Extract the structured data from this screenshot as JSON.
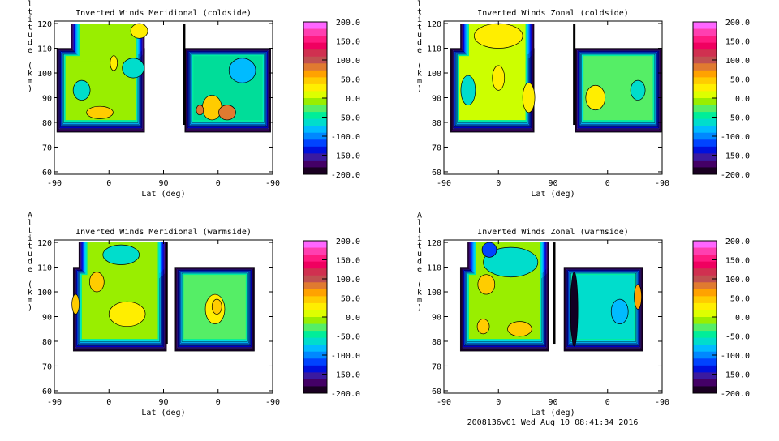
{
  "footer": "2008136v01 Wed Aug 10 08:41:34 2016",
  "colorbar": {
    "ticks": [
      "200.0",
      "150.0",
      "100.0",
      "50.0",
      "0.0",
      "-50.0",
      "-100.0",
      "-150.0",
      "-200.0"
    ],
    "range": [
      -200,
      200
    ],
    "colors": [
      "#ff66ff",
      "#ff3fb0",
      "#ff1a80",
      "#f00060",
      "#d03050",
      "#c05050",
      "#e07a30",
      "#ffa200",
      "#ffcc00",
      "#ffee00",
      "#ddff00",
      "#99ee00",
      "#55ee66",
      "#00ee99",
      "#00ddcc",
      "#00bbff",
      "#0088ff",
      "#0044ff",
      "#0010dd",
      "#3a1aa0",
      "#440066",
      "#1a0022"
    ]
  },
  "chart_data": [
    {
      "type": "heatmap",
      "title": "Inverted Winds Meridional (coldside)",
      "xlabel": "Lat (deg)",
      "ylabel": "Altitude (km)",
      "xticks": [
        "-90",
        "0",
        "90",
        "0",
        "-90"
      ],
      "yticks": [
        "60",
        "70",
        "80",
        "90",
        "100",
        "110",
        "120"
      ],
      "ylim": [
        59,
        121
      ],
      "colorbar_range": [
        -200,
        200
      ]
    },
    {
      "type": "heatmap",
      "title": "Inverted Winds Zonal (coldside)",
      "xlabel": "Lat (deg)",
      "ylabel": "Altitude (km)",
      "xticks": [
        "-90",
        "0",
        "90",
        "0",
        "-90"
      ],
      "yticks": [
        "60",
        "70",
        "80",
        "90",
        "100",
        "110",
        "120"
      ],
      "ylim": [
        59,
        121
      ],
      "colorbar_range": [
        -200,
        200
      ]
    },
    {
      "type": "heatmap",
      "title": "Inverted Winds Meridional (warmside)",
      "xlabel": "Lat (deg)",
      "ylabel": "Altitude (km)",
      "xticks": [
        "-90",
        "0",
        "90",
        "0",
        "-90"
      ],
      "yticks": [
        "60",
        "70",
        "80",
        "90",
        "100",
        "110",
        "120"
      ],
      "ylim": [
        59,
        121
      ],
      "colorbar_range": [
        -200,
        200
      ]
    },
    {
      "type": "heatmap",
      "title": "Inverted Winds Zonal (warmside)",
      "xlabel": "Lat (deg)",
      "ylabel": "Altitude (km)",
      "xticks": [
        "-90",
        "0",
        "90",
        "0",
        "-90"
      ],
      "yticks": [
        "60",
        "70",
        "80",
        "90",
        "100",
        "110",
        "120"
      ],
      "ylim": [
        59,
        121
      ],
      "colorbar_range": [
        -200,
        200
      ]
    }
  ]
}
